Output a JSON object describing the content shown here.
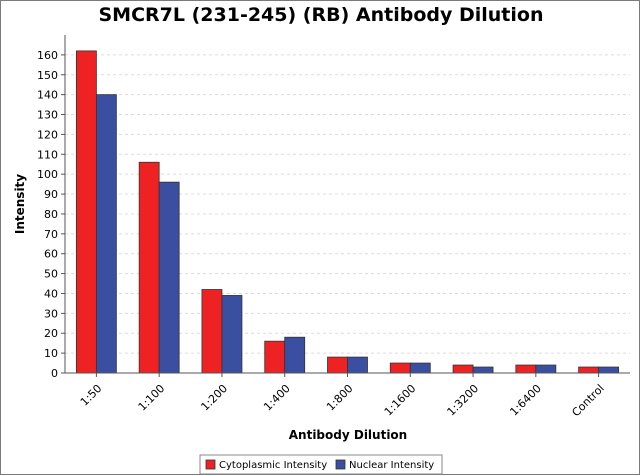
{
  "chart_data": {
    "type": "bar",
    "title": "SMCR7L (231-245) (RB) Antibody Dilution",
    "xlabel": "Antibody Dilution",
    "ylabel": "Intensity",
    "ylim": [
      0,
      170
    ],
    "yticks": [
      0,
      10,
      20,
      30,
      40,
      50,
      60,
      70,
      80,
      90,
      100,
      110,
      120,
      130,
      140,
      150,
      160
    ],
    "grid": true,
    "legend_position": "bottom",
    "categories": [
      "1:50",
      "1:100",
      "1:200",
      "1:400",
      "1:800",
      "1:1600",
      "1:3200",
      "1:6400",
      "Control"
    ],
    "series": [
      {
        "name": "Cytoplasmic Intensity",
        "color": "#ee2222",
        "values": [
          162,
          106,
          42,
          16,
          8,
          5,
          4,
          4,
          3
        ]
      },
      {
        "name": "Nuclear Intensity",
        "color": "#3a4fa0",
        "values": [
          140,
          96,
          39,
          18,
          8,
          5,
          3,
          4,
          3
        ]
      }
    ]
  }
}
